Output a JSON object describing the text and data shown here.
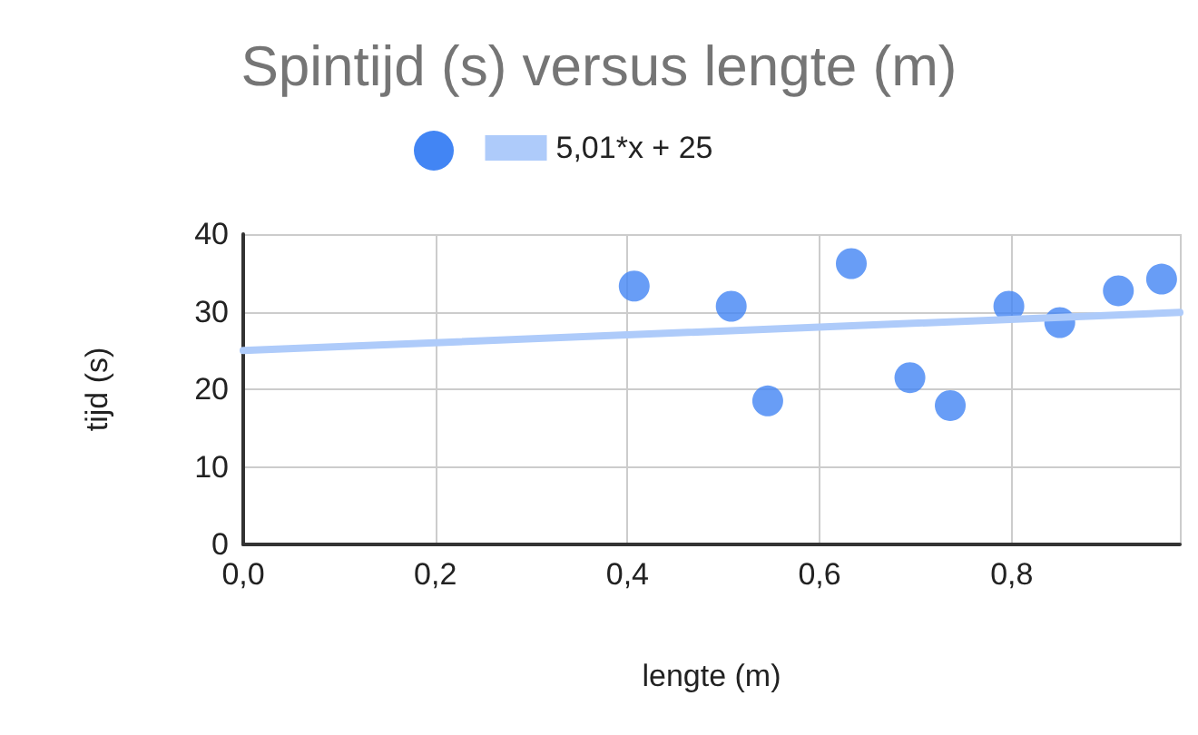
{
  "chart_data": {
    "type": "scatter",
    "title": "Spintijd (s) versus lengte (m)",
    "xlabel": "lengte (m)",
    "ylabel": "tijd (s)",
    "series": [
      {
        "color": "#4285f4",
        "marker": "circle",
        "x": [
          0.407,
          0.508,
          0.546,
          0.633,
          0.694,
          0.736,
          0.797,
          0.85,
          0.911,
          0.956
        ],
        "values": [
          33.3,
          30.7,
          18.5,
          36.2,
          21.5,
          17.9,
          30.7,
          28.6,
          32.7,
          34.2
        ]
      },
      {
        "type": "line",
        "name": "5,01*x + 25",
        "color": "#aecbfa",
        "x": [
          0,
          0.975
        ],
        "values": [
          25,
          29.9
        ],
        "marker": "none"
      }
    ],
    "xlim": [
      0,
      0.975
    ],
    "xticks": [
      {
        "value": 0,
        "label": "0,0"
      },
      {
        "value": 0.2,
        "label": "0,2"
      },
      {
        "value": 0.4,
        "label": "0,4"
      },
      {
        "value": 0.6,
        "label": "0,6"
      },
      {
        "value": 0.8,
        "label": "0,8"
      }
    ],
    "ylim": [
      0,
      40
    ],
    "yticks": [
      0,
      10,
      20,
      30,
      40
    ],
    "grid": true,
    "legend": "top"
  }
}
